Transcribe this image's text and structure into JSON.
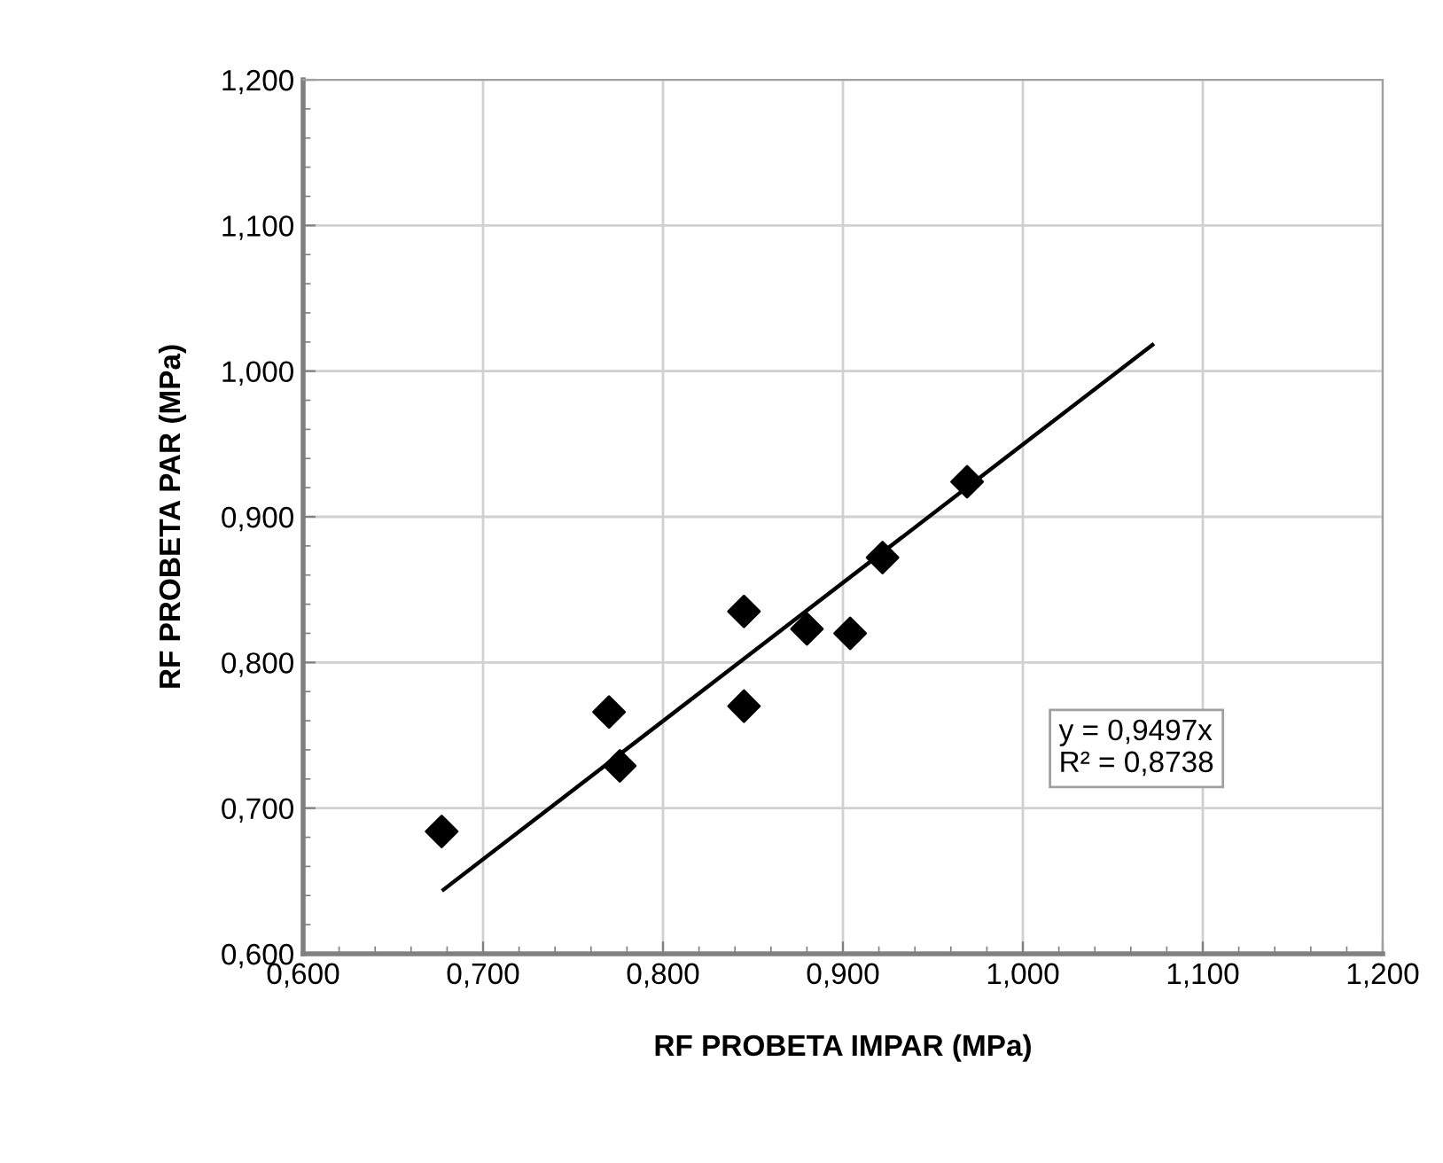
{
  "chart_data": {
    "type": "scatter",
    "xlabel": "RF PROBETA IMPAR (MPa)",
    "ylabel": "RF PROBETA PAR (MPa)",
    "xlim": [
      0.6,
      1.2
    ],
    "ylim": [
      0.6,
      1.2
    ],
    "xticks": [
      {
        "value": 0.6,
        "label": "0,600"
      },
      {
        "value": 0.7,
        "label": "0,700"
      },
      {
        "value": 0.8,
        "label": "0,800"
      },
      {
        "value": 0.9,
        "label": "0,900"
      },
      {
        "value": 1.0,
        "label": "1,000"
      },
      {
        "value": 1.1,
        "label": "1,100"
      },
      {
        "value": 1.2,
        "label": "1,200"
      }
    ],
    "yticks": [
      {
        "value": 0.6,
        "label": "0,600"
      },
      {
        "value": 0.7,
        "label": "0,700"
      },
      {
        "value": 0.8,
        "label": "0,800"
      },
      {
        "value": 0.9,
        "label": "0,900"
      },
      {
        "value": 1.0,
        "label": "1,000"
      },
      {
        "value": 1.1,
        "label": "1,100"
      },
      {
        "value": 1.2,
        "label": "1,200"
      }
    ],
    "grid": true,
    "series": [
      {
        "marker": "diamond",
        "color": "#000000",
        "x": [
          0.677,
          0.77,
          0.776,
          0.845,
          0.845,
          0.88,
          0.904,
          0.922,
          0.969
        ],
        "values": [
          0.684,
          0.766,
          0.729,
          0.835,
          0.77,
          0.823,
          0.82,
          0.872,
          0.924
        ]
      },
      {
        "type": "line",
        "color": "#000000",
        "x": [
          0.678,
          1.072
        ],
        "values": [
          0.644,
          1.018
        ]
      }
    ],
    "annotations": [
      "y = 0,9497x\nR² = 0,8738"
    ]
  }
}
